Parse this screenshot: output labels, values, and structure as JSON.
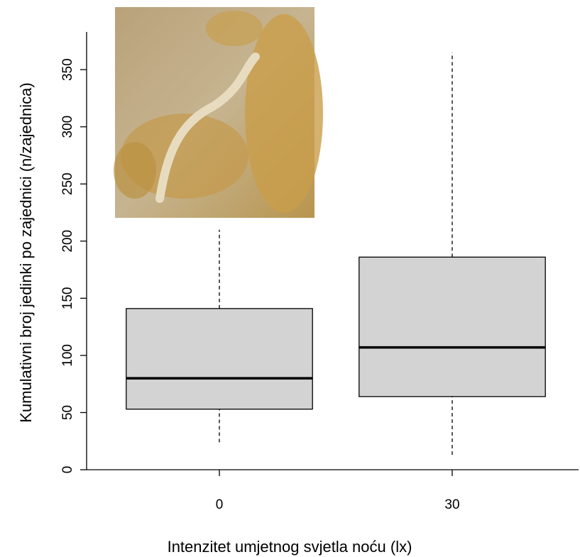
{
  "chart_data": {
    "type": "boxplot",
    "x_label": "Intenzitet umjetnog svjetla noću (lx)",
    "y_label": "Kumulativni broj jedinki po zajednici (n/zajednica)",
    "categories": [
      "0",
      "30"
    ],
    "boxes": [
      {
        "min": 24,
        "q1": 53,
        "median": 80,
        "q3": 141,
        "max": 210
      },
      {
        "min": 13,
        "q1": 64,
        "median": 107,
        "q3": 186,
        "max": 365
      }
    ],
    "color": "#d3d3d3",
    "ylim": [
      0,
      383
    ],
    "yticks": [
      0,
      50,
      100,
      150,
      200,
      250,
      300,
      350
    ]
  }
}
